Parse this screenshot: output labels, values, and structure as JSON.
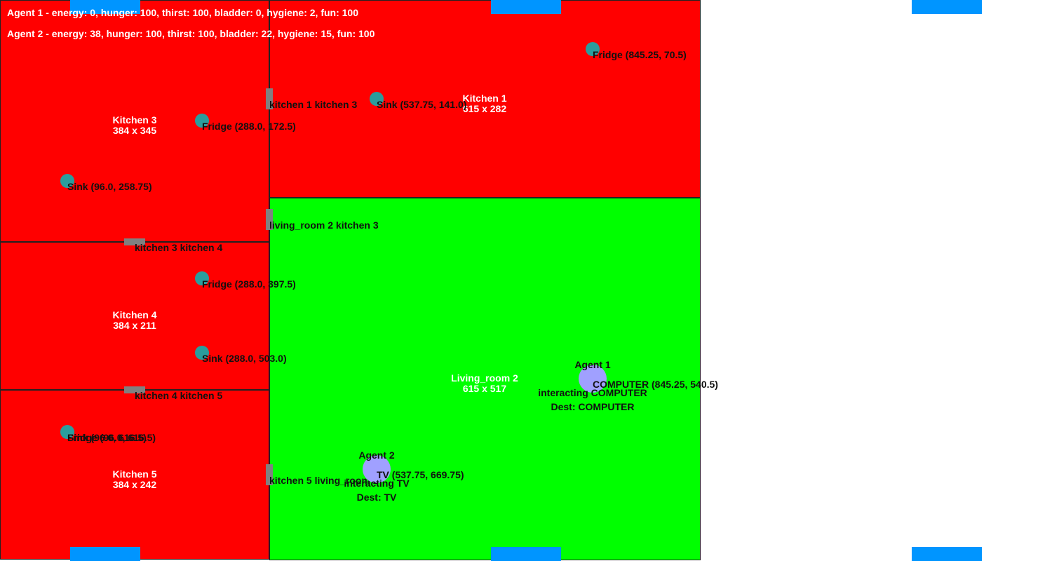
{
  "colors": {
    "kitchen": "#ff0000",
    "living_room": "#00ff00",
    "edge_marker": "#0095ff",
    "door": "#808080",
    "object": "#2a9d9d",
    "agent": "#a0a0ff"
  },
  "status": {
    "agent1": "Agent 1 - energy: 0, hunger: 100, thirst: 100, bladder: 0, hygiene: 2, fun: 100",
    "agent2": "Agent 2 - energy: 38, hunger: 100, thirst: 100, bladder: 22, hygiene: 15, fun: 100"
  },
  "rooms": {
    "kitchen1": {
      "name": "Kitchen 1",
      "size": "615 x 282"
    },
    "kitchen3": {
      "name": "Kitchen 3",
      "size": "384 x 345"
    },
    "kitchen4": {
      "name": "Kitchen 4",
      "size": "384 x 211"
    },
    "kitchen5": {
      "name": "Kitchen 5",
      "size": "384 x 242"
    },
    "living_room2": {
      "name": "Living_room 2",
      "size": "615 x 517"
    }
  },
  "doors": {
    "k1_k3": "kitchen 1 kitchen 3",
    "lr2_k3": "living_room 2 kitchen 3",
    "k3_k4": "kitchen 3 kitchen 4",
    "k4_k5": "kitchen 4 kitchen 5",
    "k5_lr2": "kitchen 5 living_room 2"
  },
  "objects": {
    "k1_fridge": "Fridge (845.25, 70.5)",
    "k1_sink": "Sink (537.75, 141.0)",
    "k3_fridge": "Fridge (288.0, 172.5)",
    "k3_sink": "Sink (96.0, 258.75)",
    "k4_fridge": "Fridge (288.0, 397.5)",
    "k4_sink": "Sink (288.0, 503.0)",
    "k5_fridge": "Fridge (96.0, 616.5)",
    "k5_sink": "Sink (96.0, 616.5)",
    "computer": "COMPUTER (845.25, 540.5)",
    "tv": "TV (537.75, 669.75)"
  },
  "agents": {
    "agent1": {
      "name": "Agent 1",
      "action": "interacting COMPUTER",
      "dest": "Dest: COMPUTER"
    },
    "agent2": {
      "name": "Agent 2",
      "action": "interacting TV",
      "dest": "Dest: TV"
    }
  }
}
